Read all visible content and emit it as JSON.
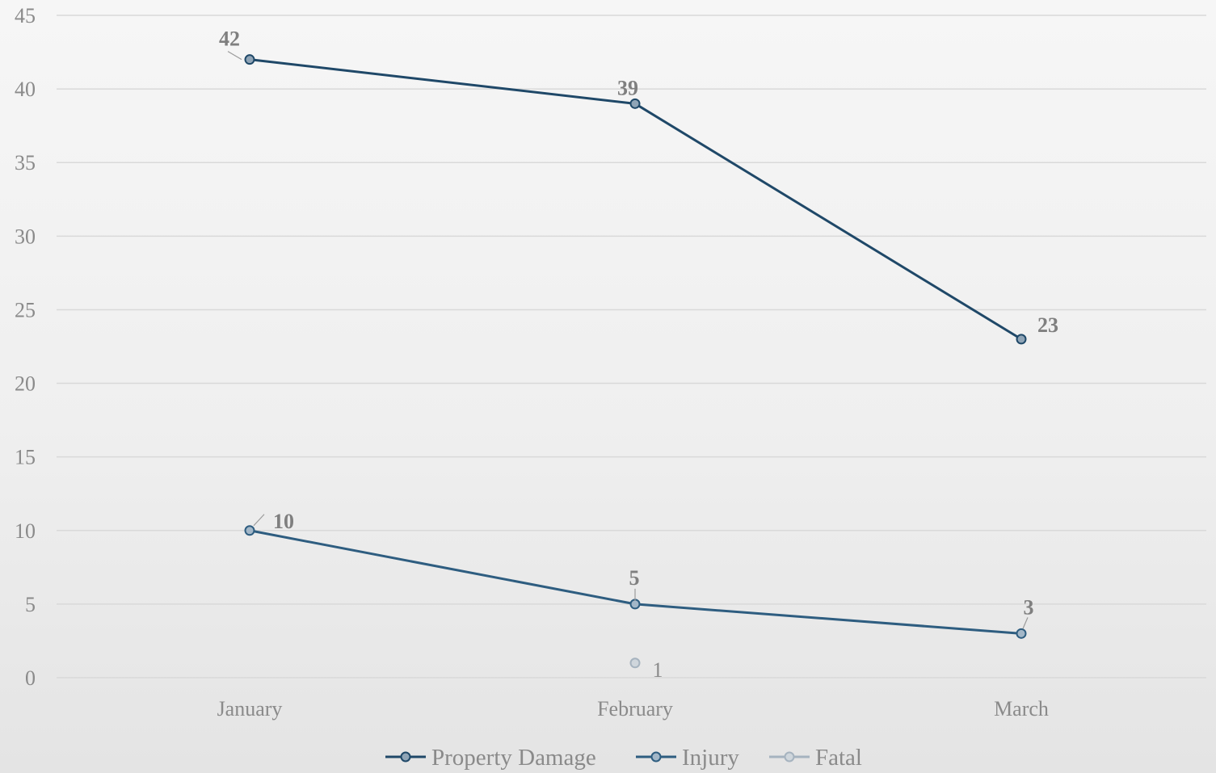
{
  "chart_data": {
    "type": "line",
    "title": "",
    "xlabel": "",
    "ylabel": "",
    "categories": [
      "January",
      "February",
      "March"
    ],
    "ylim": [
      0,
      45
    ],
    "yticks": [
      0,
      5,
      10,
      15,
      20,
      25,
      30,
      35,
      40,
      45
    ],
    "grid": true,
    "legend_position": "bottom",
    "series": [
      {
        "name": "Property Damage",
        "values": [
          42,
          39,
          23
        ],
        "color": "#1f4868",
        "marker_fill": "#8fa4b6",
        "data_labels": [
          "42",
          "39",
          "23"
        ]
      },
      {
        "name": "Injury",
        "values": [
          10,
          5,
          3
        ],
        "color": "#2e5d80",
        "marker_fill": "#a3b7c8",
        "data_labels": [
          "10",
          "5",
          "3"
        ]
      },
      {
        "name": "Fatal",
        "values": [
          null,
          1,
          null
        ],
        "color": "#a6b3bf",
        "marker_fill": "#cfd6dc",
        "data_labels": [
          "",
          "1",
          ""
        ]
      }
    ]
  }
}
